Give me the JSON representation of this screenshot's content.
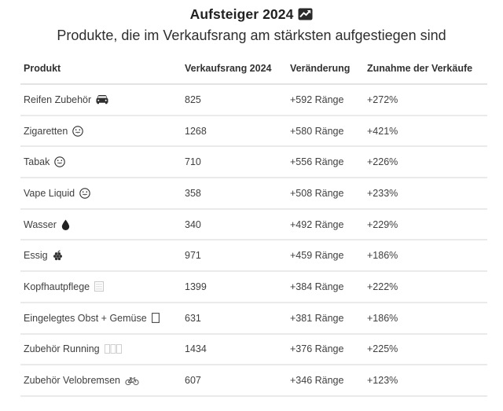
{
  "header": {
    "title": "Aufsteiger 2024",
    "title_icon": "chart-increasing-icon",
    "subtitle": "Produkte, die im Verkaufsrang am stärksten aufgestiegen sind"
  },
  "chart_data": {
    "type": "table",
    "title": "Aufsteiger 2024",
    "subtitle": "Produkte, die im Verkaufsrang am stärksten aufgestiegen sind",
    "columns": [
      "Produkt",
      "Verkaufsrang 2024",
      "Veränderung",
      "Zunahme der Verkäufe"
    ],
    "rows": [
      {
        "produkt": "Reifen Zubehör",
        "icon": "car-icon",
        "verkaufsrang": "825",
        "veraenderung": "+592 Ränge",
        "zunahme": "+272%"
      },
      {
        "produkt": "Zigaretten",
        "icon": "exhaling-face-icon",
        "verkaufsrang": "1268",
        "veraenderung": "+580 Ränge",
        "zunahme": "+421%"
      },
      {
        "produkt": "Tabak",
        "icon": "exhaling-face-icon",
        "verkaufsrang": "710",
        "veraenderung": "+556 Ränge",
        "zunahme": "+226%"
      },
      {
        "produkt": "Vape Liquid",
        "icon": "exhaling-face-icon",
        "verkaufsrang": "358",
        "veraenderung": "+508 Ränge",
        "zunahme": "+233%"
      },
      {
        "produkt": "Wasser",
        "icon": "droplet-icon",
        "verkaufsrang": "340",
        "veraenderung": "+492 Ränge",
        "zunahme": "+229%"
      },
      {
        "produkt": "Essig",
        "icon": "grapes-icon",
        "verkaufsrang": "971",
        "veraenderung": "+459 Ränge",
        "zunahme": "+186%"
      },
      {
        "produkt": "Kopfhautpflege",
        "icon": "missing-glyph-icon",
        "verkaufsrang": "1399",
        "veraenderung": "+384 Ränge",
        "zunahme": "+222%"
      },
      {
        "produkt": "Eingelegtes Obst + Gemüse",
        "icon": "box-glyph-icon",
        "verkaufsrang": "631",
        "veraenderung": "+381 Ränge",
        "zunahme": "+186%"
      },
      {
        "produkt": "Zubehör Running",
        "icon": "missing-glyphs-icon",
        "verkaufsrang": "1434",
        "veraenderung": "+376 Ränge",
        "zunahme": "+225%"
      },
      {
        "produkt": "Zubehör Velobremsen",
        "icon": "bicycle-icon",
        "verkaufsrang": "607",
        "veraenderung": "+346 Ränge",
        "zunahme": "+123%"
      }
    ]
  },
  "colors": {
    "title_text": "#212121",
    "body_text": "#3f3f3f",
    "header_text": "#323232",
    "divider": "#e5e5e5",
    "background": "#ffffff",
    "icon_dark": "#2e2e2e"
  }
}
